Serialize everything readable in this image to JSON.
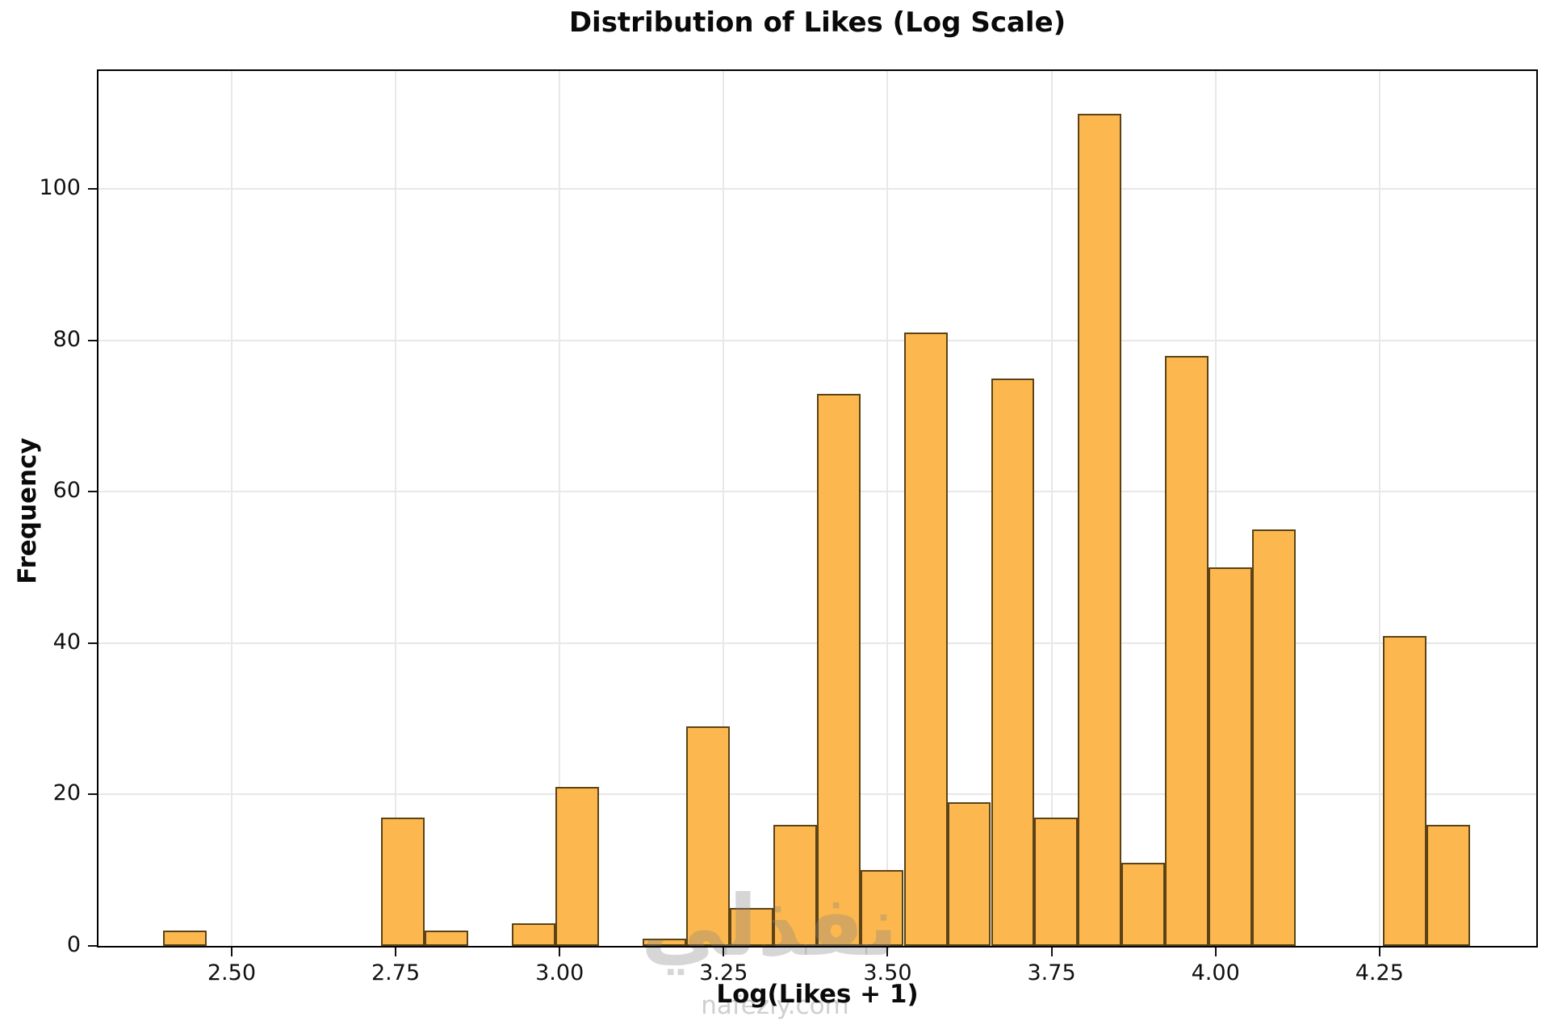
{
  "chart_data": {
    "type": "bar",
    "subtype": "histogram",
    "title": "Distribution of Likes (Log Scale)",
    "xlabel": "Log(Likes + 1)",
    "ylabel": "Frequency",
    "bin_start": 2.396,
    "bin_width": 0.0664,
    "counts": [
      2,
      0,
      0,
      0,
      0,
      17,
      2,
      0,
      3,
      21,
      0,
      1,
      29,
      5,
      16,
      73,
      10,
      81,
      19,
      75,
      17,
      110,
      11,
      78,
      50,
      55,
      0,
      0,
      41,
      16
    ],
    "xticks": [
      "2.50",
      "2.75",
      "3.00",
      "3.25",
      "3.50",
      "3.75",
      "4.00",
      "4.25"
    ],
    "yticks": [
      "0",
      "20",
      "40",
      "60",
      "80",
      "100"
    ],
    "xlim": [
      2.297,
      4.489
    ],
    "ylim": [
      0,
      115.6
    ],
    "grid": true,
    "legend_position": "none",
    "bar_color": "#fcb84e",
    "bar_edge_color": "#2d2208",
    "gridline_color": "#e8e8e8"
  },
  "watermark": {
    "arabic": "نفذلي",
    "domain": "nafezly.com"
  }
}
